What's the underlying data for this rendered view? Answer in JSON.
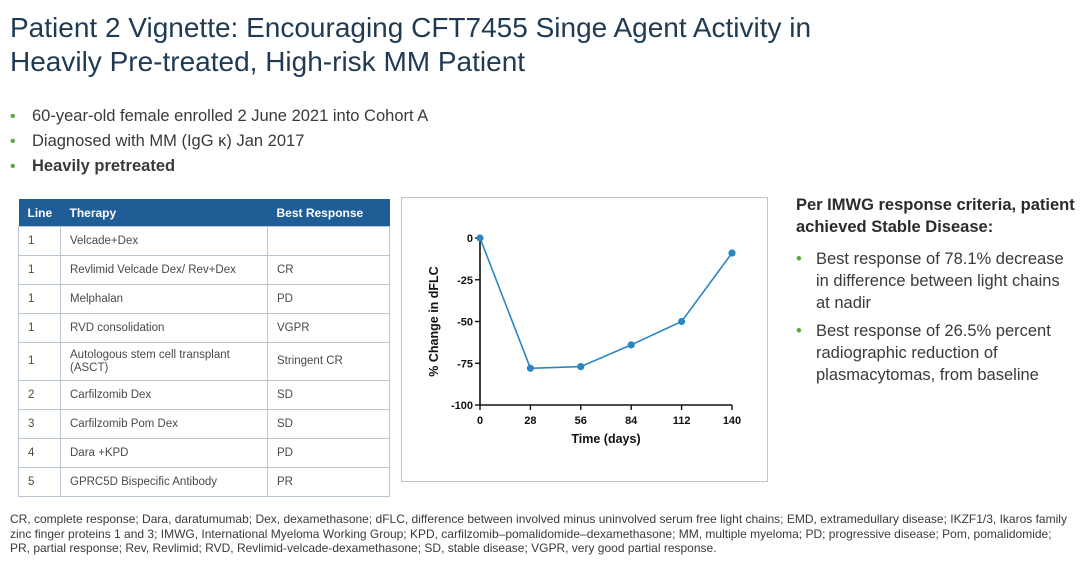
{
  "title": {
    "line1": "Patient 2 Vignette: Encouraging CFT7455 Singe Agent Activity in",
    "line2": "Heavily Pre-treated, High-risk MM Patient"
  },
  "bullets": [
    "60-year-old female enrolled 2 June 2021 into Cohort A",
    "Diagnosed with MM (IgG κ) Jan 2017",
    "Heavily pretreated"
  ],
  "bullet_glyph": "•",
  "therapy_table": {
    "headers": [
      "Line",
      "Therapy",
      "Best Response"
    ],
    "rows": [
      [
        "1",
        "Velcade+Dex",
        ""
      ],
      [
        "1",
        "Revlimid Velcade Dex/ Rev+Dex",
        "CR"
      ],
      [
        "1",
        "Melphalan",
        "PD"
      ],
      [
        "1",
        "RVD consolidation",
        "VGPR"
      ],
      [
        "1",
        "Autologous stem cell transplant (ASCT)",
        "Stringent CR"
      ],
      [
        "2",
        "Carfilzomib Dex",
        "SD"
      ],
      [
        "3",
        "Carfilzomib Pom Dex",
        "SD"
      ],
      [
        "4",
        "Dara +KPD",
        "PD"
      ],
      [
        "5",
        "GPRC5D Bispecific Antibody",
        "PR"
      ]
    ]
  },
  "chart_data": {
    "type": "line",
    "title": "",
    "xlabel": "Time (days)",
    "ylabel": "% Change in dFLC",
    "x": [
      0,
      28,
      56,
      84,
      112,
      140
    ],
    "y": [
      0,
      -78,
      -77,
      -64,
      -50,
      -9
    ],
    "xlim": [
      0,
      140
    ],
    "ylim": [
      -100,
      0
    ],
    "xticks": [
      0,
      28,
      56,
      84,
      112,
      140
    ],
    "yticks": [
      0,
      -25,
      -50,
      -75,
      -100
    ],
    "yticklabels": [
      "0",
      "-25",
      "-50",
      "-75",
      "-100"
    ],
    "color": "#2b86c5"
  },
  "response_panel": {
    "heading": "Per IMWG response criteria, patient achieved Stable Disease:",
    "items": [
      "Best response of 78.1% decrease in difference between light chains at nadir",
      "Best response of 26.5% percent radiographic reduction of plasmacytomas, from baseline"
    ]
  },
  "footnote": "CR, complete response; Dara, daratumumab; Dex, dexamethasone; dFLC, difference between involved minus uninvolved serum free light chains; EMD, extramedullary disease; IKZF1/3, Ikaros family zinc finger proteins 1 and 3; IMWG, International Myeloma Working Group; KPD, carfilzomib–pomalidomide–dexamethasone; MM, multiple myeloma; PD; progressive disease; Pom, pomalidomide; PR, partial response; Rev, Revlimid; RVD, Revlimid-velcade-dexamethasone; SD, stable disease; VGPR, very good partial response.",
  "colors": {
    "title": "#1f3a52",
    "accent_green": "#5aa63a",
    "table_header": "#1f5d97",
    "line": "#2b86c5"
  }
}
